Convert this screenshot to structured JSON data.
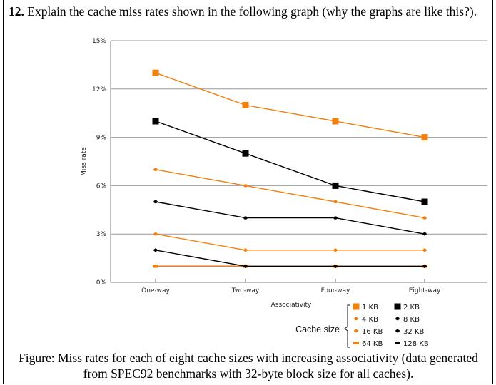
{
  "question": {
    "number": "12.",
    "text": " Explain the cache miss rates shown in the following graph (why the graphs are like this?)."
  },
  "caption": "Figure: Miss rates for each of eight cache sizes with increasing associativity (data generated from SPEC92 benchmarks with 32-byte block size for all caches).",
  "chart_data": {
    "type": "line",
    "xlabel": "Associativity",
    "ylabel": "Miss rate",
    "categories": [
      "One-way",
      "Two-way",
      "Four-way",
      "Eight-way"
    ],
    "ylim": [
      0,
      15
    ],
    "yticks": [
      0,
      3,
      6,
      9,
      12,
      15
    ],
    "ytick_labels": [
      "0%",
      "3%",
      "6%",
      "9%",
      "12%",
      "15%"
    ],
    "grid": "horizontal",
    "legend_title": "Cache size",
    "legend_placement": "bottom-right",
    "series": [
      {
        "name": "1 KB",
        "color": "#f08010",
        "marker": "square",
        "values": [
          13,
          11,
          10,
          9
        ]
      },
      {
        "name": "2 KB",
        "color": "#000000",
        "marker": "square",
        "values": [
          10,
          8,
          6,
          5
        ]
      },
      {
        "name": "4 KB",
        "color": "#f08010",
        "marker": "dot",
        "values": [
          7,
          6,
          5,
          4
        ]
      },
      {
        "name": "8 KB",
        "color": "#000000",
        "marker": "dot",
        "values": [
          5,
          4,
          4,
          3
        ]
      },
      {
        "name": "16 KB",
        "color": "#f08010",
        "marker": "diamond",
        "values": [
          3,
          2,
          2,
          2
        ]
      },
      {
        "name": "32 KB",
        "color": "#000000",
        "marker": "diamond",
        "values": [
          2,
          1,
          1,
          1
        ]
      },
      {
        "name": "64 KB",
        "color": "#f08010",
        "marker": "bar",
        "values": [
          1,
          1,
          1,
          1
        ]
      },
      {
        "name": "128 KB",
        "color": "#000000",
        "marker": "bar",
        "values": [
          1,
          1,
          1,
          1
        ]
      }
    ]
  }
}
